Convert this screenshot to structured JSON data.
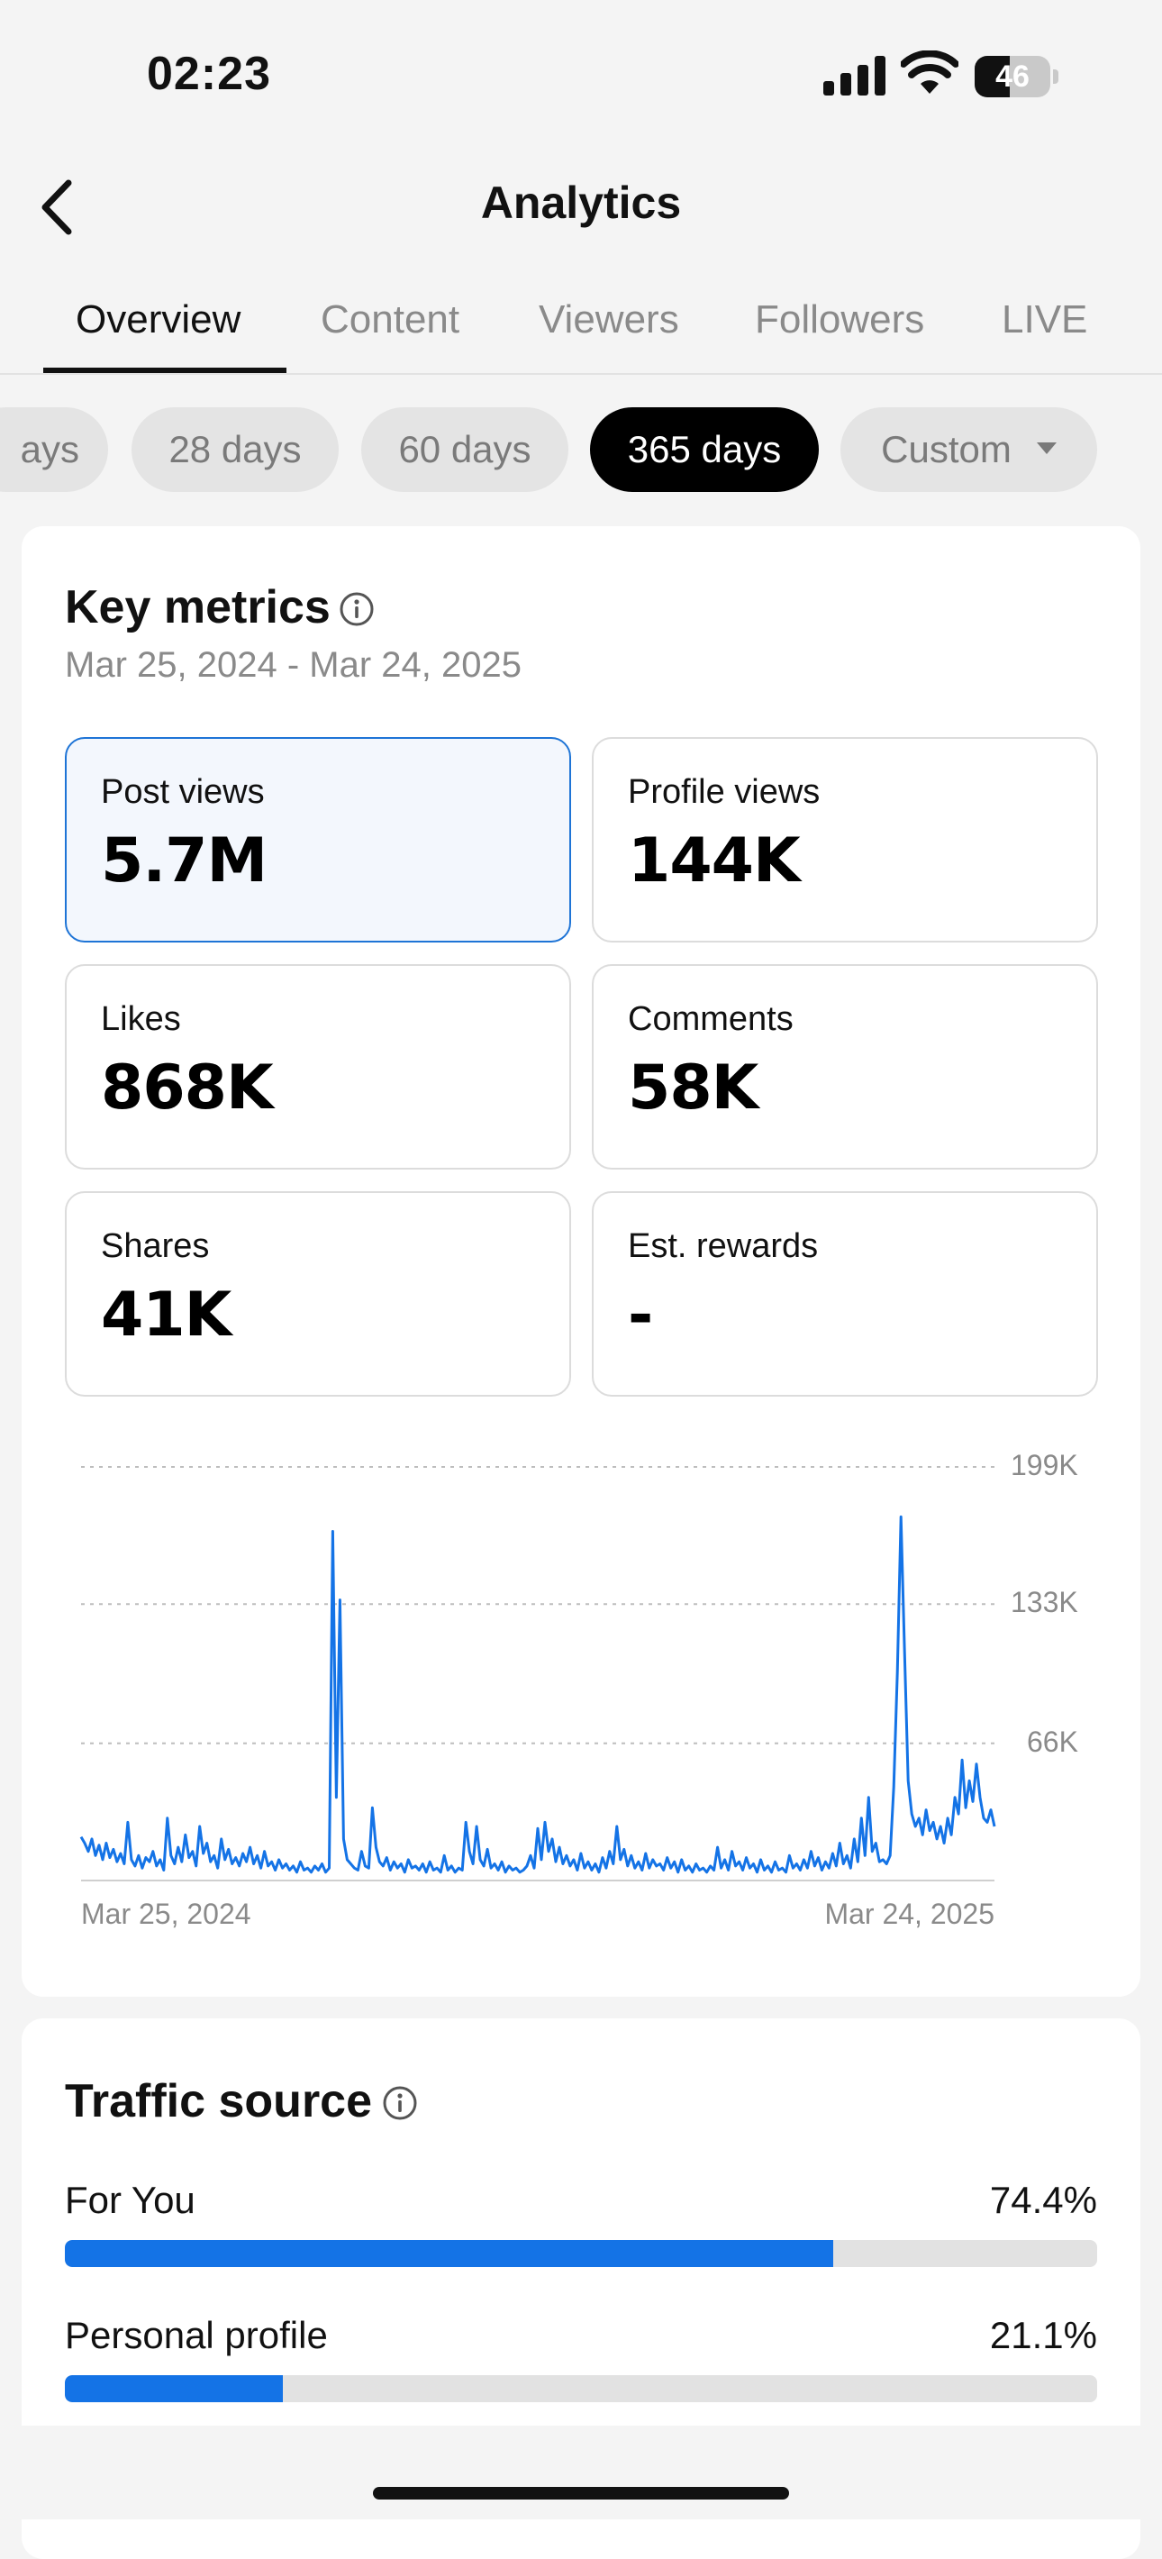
{
  "status": {
    "time": "02:23",
    "battery": "46",
    "battery_level": 0.46
  },
  "header": {
    "title": "Analytics"
  },
  "tabs": [
    {
      "label": "Overview",
      "active": true
    },
    {
      "label": "Content"
    },
    {
      "label": "Viewers"
    },
    {
      "label": "Followers"
    },
    {
      "label": "LIVE"
    }
  ],
  "ranges": [
    {
      "label": "ays"
    },
    {
      "label": "28 days"
    },
    {
      "label": "60 days"
    },
    {
      "label": "365 days",
      "active": true
    },
    {
      "label": "Custom"
    }
  ],
  "key_metrics": {
    "title": "Key metrics",
    "date_range": "Mar 25, 2024 - Mar 24, 2025",
    "metrics": [
      {
        "label": "Post views",
        "value": "5.7M",
        "selected": true
      },
      {
        "label": "Profile views",
        "value": "144K"
      },
      {
        "label": "Likes",
        "value": "868K"
      },
      {
        "label": "Comments",
        "value": "58K"
      },
      {
        "label": "Shares",
        "value": "41K"
      },
      {
        "label": "Est. rewards",
        "value": "-"
      }
    ]
  },
  "chart_data": {
    "type": "line",
    "x_start_label": "Mar 25, 2024",
    "x_end_label": "Mar 24, 2025",
    "y_ticks": [
      "199K",
      "133K",
      "66K"
    ],
    "y_tick_values": [
      199000,
      133000,
      66000
    ],
    "ylim": [
      0,
      199000
    ],
    "grid": true,
    "color": "#1473e6",
    "series": [
      {
        "values": [
          21000,
          18000,
          14000,
          20000,
          12000,
          17000,
          10000,
          18000,
          11000,
          15000,
          9000,
          13000,
          8000,
          28000,
          10000,
          7000,
          12000,
          6000,
          11000,
          9000,
          14000,
          7000,
          10000,
          5000,
          30000,
          12000,
          8000,
          16000,
          9000,
          22000,
          11000,
          14000,
          7000,
          26000,
          13000,
          18000,
          9000,
          12000,
          6000,
          20000,
          10000,
          15000,
          8000,
          11000,
          7000,
          13000,
          9000,
          16000,
          8000,
          12000,
          6000,
          14000,
          7000,
          9000,
          5000,
          10000,
          6000,
          8000,
          5000,
          7000,
          4000,
          9000,
          5000,
          6000,
          4000,
          7000,
          5000,
          8000,
          4000,
          6000,
          168000,
          40000,
          135000,
          20000,
          10000,
          8000,
          6000,
          5000,
          14000,
          7000,
          6000,
          35000,
          16000,
          9000,
          7000,
          11000,
          5000,
          9000,
          6000,
          8000,
          4000,
          10000,
          6000,
          7000,
          5000,
          8000,
          4000,
          9000,
          5000,
          6000,
          4000,
          12000,
          5000,
          7000,
          4000,
          6000,
          5000,
          28000,
          14000,
          8000,
          26000,
          10000,
          7000,
          15000,
          6000,
          8000,
          5000,
          9000,
          4000,
          7000,
          5000,
          6000,
          4000,
          5000,
          7000,
          12000,
          6000,
          25000,
          10000,
          28000,
          14000,
          20000,
          9000,
          16000,
          8000,
          12000,
          7000,
          10000,
          5000,
          13000,
          6000,
          9000,
          5000,
          8000,
          4000,
          11000,
          6000,
          14000,
          8000,
          26000,
          10000,
          15000,
          7000,
          12000,
          6000,
          9000,
          5000,
          13000,
          6000,
          10000,
          7000,
          8000,
          5000,
          11000,
          6000,
          9000,
          4000,
          10000,
          5000,
          7000,
          4000,
          8000,
          5000,
          6000,
          4000,
          7000,
          5000,
          16000,
          6000,
          10000,
          5000,
          14000,
          7000,
          9000,
          5000,
          11000,
          6000,
          8000,
          4000,
          10000,
          5000,
          7000,
          4000,
          9000,
          5000,
          6000,
          4000,
          12000,
          6000,
          8000,
          5000,
          10000,
          6000,
          14000,
          7000,
          11000,
          5000,
          9000,
          6000,
          13000,
          7000,
          18000,
          8000,
          12000,
          6000,
          20000,
          9000,
          30000,
          12000,
          40000,
          14000,
          18000,
          9000,
          10000,
          8000,
          12000,
          45000,
          100000,
          175000,
          110000,
          48000,
          32000,
          26000,
          30000,
          22000,
          34000,
          24000,
          28000,
          20000,
          26000,
          18000,
          30000,
          22000,
          40000,
          32000,
          58000,
          35000,
          48000,
          38000,
          56000,
          40000,
          30000,
          28000,
          34000,
          26000
        ]
      }
    ]
  },
  "traffic": {
    "title": "Traffic source",
    "items": [
      {
        "label": "For You",
        "value": "74.4%",
        "fraction": 0.744
      },
      {
        "label": "Personal profile",
        "value": "21.1%",
        "fraction": 0.211
      }
    ]
  }
}
